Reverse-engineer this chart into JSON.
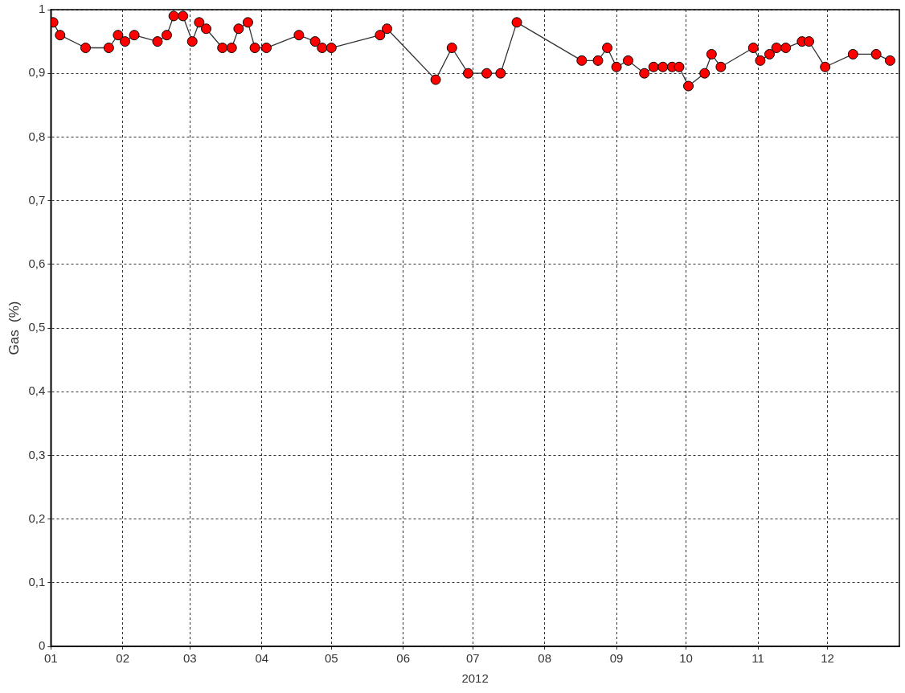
{
  "chart_data": {
    "type": "line",
    "xlabel": "2012",
    "ylabel": "Gas  (%)",
    "x": [
      "2012-01-02",
      "2012-01-05",
      "2012-01-16",
      "2012-01-26",
      "2012-01-30",
      "2012-02-02",
      "2012-02-06",
      "2012-02-16",
      "2012-02-20",
      "2012-02-23",
      "2012-02-27",
      "2012-03-02",
      "2012-03-05",
      "2012-03-08",
      "2012-03-15",
      "2012-03-19",
      "2012-03-22",
      "2012-03-26",
      "2012-03-29",
      "2012-04-03",
      "2012-04-17",
      "2012-04-24",
      "2012-04-27",
      "2012-05-01",
      "2012-05-22",
      "2012-05-25",
      "2012-06-15",
      "2012-06-22",
      "2012-06-29",
      "2012-07-07",
      "2012-07-13",
      "2012-07-20",
      "2012-08-17",
      "2012-08-24",
      "2012-08-28",
      "2012-09-01",
      "2012-09-06",
      "2012-09-13",
      "2012-09-17",
      "2012-09-21",
      "2012-09-25",
      "2012-09-28",
      "2012-10-02",
      "2012-10-09",
      "2012-10-12",
      "2012-10-16",
      "2012-10-30",
      "2012-11-02",
      "2012-11-06",
      "2012-11-09",
      "2012-11-13",
      "2012-11-20",
      "2012-11-23",
      "2012-11-30",
      "2012-12-12",
      "2012-12-22",
      "2012-12-28"
    ],
    "series": [
      {
        "color": "#ff0000",
        "values": [
          0.98,
          0.96,
          0.94,
          0.94,
          0.96,
          0.95,
          0.96,
          0.95,
          0.96,
          0.99,
          0.99,
          0.95,
          0.98,
          0.97,
          0.94,
          0.94,
          0.97,
          0.98,
          0.94,
          0.94,
          0.96,
          0.95,
          0.94,
          0.94,
          0.96,
          0.97,
          0.89,
          0.94,
          0.9,
          0.9,
          0.9,
          0.98,
          0.92,
          0.92,
          0.94,
          0.91,
          0.92,
          0.9,
          0.91,
          0.91,
          0.91,
          0.91,
          0.88,
          0.9,
          0.93,
          0.91,
          0.94,
          0.92,
          0.93,
          0.94,
          0.94,
          0.95,
          0.95,
          0.91,
          0.93,
          0.93,
          0.92
        ]
      }
    ],
    "xlim": [
      "2012-01-01",
      "2013-01-01"
    ],
    "xticks": [
      {
        "value": "2012-01-01",
        "label": "01"
      },
      {
        "value": "2012-02-01",
        "label": "02"
      },
      {
        "value": "2012-03-01",
        "label": "03"
      },
      {
        "value": "2012-04-01",
        "label": "04"
      },
      {
        "value": "2012-05-01",
        "label": "05"
      },
      {
        "value": "2012-06-01",
        "label": "06"
      },
      {
        "value": "2012-07-01",
        "label": "07"
      },
      {
        "value": "2012-08-01",
        "label": "08"
      },
      {
        "value": "2012-09-01",
        "label": "09"
      },
      {
        "value": "2012-10-01",
        "label": "10"
      },
      {
        "value": "2012-11-01",
        "label": "11"
      },
      {
        "value": "2012-12-01",
        "label": "12"
      }
    ],
    "ylim": [
      0,
      1
    ],
    "yticks": [
      0,
      {
        "value": 0.1,
        "label": "0,1"
      },
      {
        "value": 0.2,
        "label": "0,2"
      },
      {
        "value": 0.3,
        "label": "0,3"
      },
      {
        "value": 0.4,
        "label": "0,4"
      },
      {
        "value": 0.5,
        "label": "0,5"
      },
      {
        "value": 0.6,
        "label": "0,6"
      },
      {
        "value": 0.7,
        "label": "0,7"
      },
      {
        "value": 0.8,
        "label": "0,8"
      },
      {
        "value": 0.9,
        "label": "0,9"
      },
      1
    ],
    "grid": true,
    "legend": false,
    "marker": "circle",
    "line_style": "solid"
  }
}
